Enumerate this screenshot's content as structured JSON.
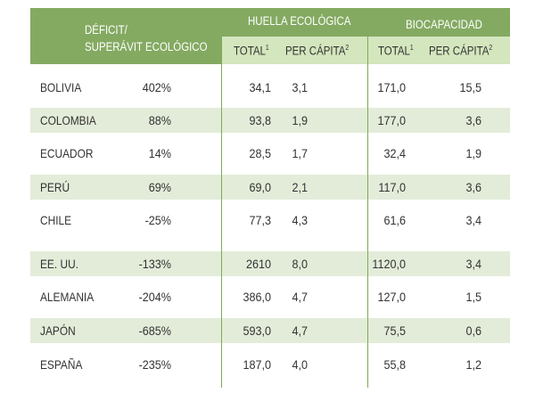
{
  "header": {
    "deficit_line1": "DÉFICIT/",
    "deficit_line2": "SUPERÁVIT ECOLÓGICO",
    "huella": "HUELLA ECOLÓGICA",
    "biocapacidad": "BIOCAPACIDAD",
    "total": "TOTAL",
    "total_note": "1",
    "per_capita": "PER CÁPITA",
    "per_capita_note": "2"
  },
  "colors": {
    "header": "#84aa62",
    "subheader": "#d4e6bd",
    "stripe": "#e3ecd9",
    "divider": "#7cab55"
  },
  "rows": [
    {
      "country": "BOLIVIA",
      "deficit": "402%",
      "he_total": "34,1",
      "he_pc": "3,1",
      "bc_total": "171,0",
      "bc_pc": "15,5"
    },
    {
      "country": "COLOMBIA",
      "deficit": "88%",
      "he_total": "93,8",
      "he_pc": "1,9",
      "bc_total": "177,0",
      "bc_pc": "3,6"
    },
    {
      "country": "ECUADOR",
      "deficit": "14%",
      "he_total": "28,5",
      "he_pc": "1,7",
      "bc_total": "32,4",
      "bc_pc": "1,9"
    },
    {
      "country": "PERÚ",
      "deficit": "69%",
      "he_total": "69,0",
      "he_pc": "2,1",
      "bc_total": "117,0",
      "bc_pc": "3,6"
    },
    {
      "country": "CHILE",
      "deficit": "-25%",
      "he_total": "77,3",
      "he_pc": "4,3",
      "bc_total": "61,6",
      "bc_pc": "3,4"
    },
    {
      "country": "EE. UU.",
      "deficit": "-133%",
      "he_total": "2610",
      "he_pc": "8,0",
      "bc_total": "1120,0",
      "bc_pc": "3,4"
    },
    {
      "country": "ALEMANIA",
      "deficit": "-204%",
      "he_total": "386,0",
      "he_pc": "4,7",
      "bc_total": "127,0",
      "bc_pc": "1,5"
    },
    {
      "country": "JAPÓN",
      "deficit": "-685%",
      "he_total": "593,0",
      "he_pc": "4,7",
      "bc_total": "75,5",
      "bc_pc": "0,6"
    },
    {
      "country": "ESPAÑA",
      "deficit": "-235%",
      "he_total": "187,0",
      "he_pc": "4,0",
      "bc_total": "55,8",
      "bc_pc": "1,2"
    }
  ]
}
